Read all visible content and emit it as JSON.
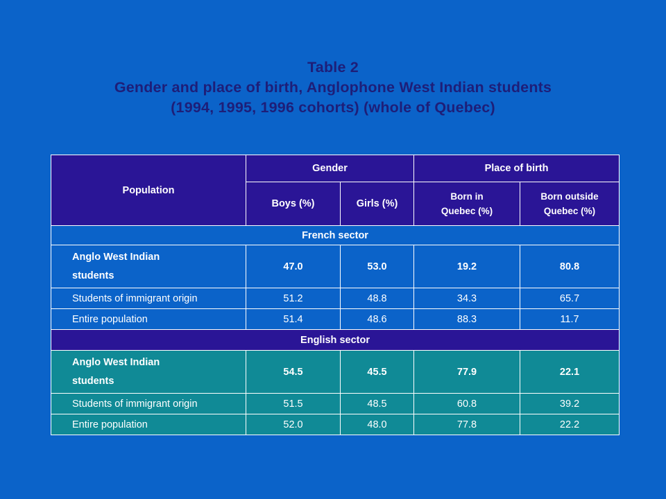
{
  "title": {
    "line1": "Table 2",
    "line2": "Gender and place of birth, Anglophone West Indian students",
    "line3": "(1994, 1995, 1996 cohorts) (whole of Quebec)"
  },
  "headers": {
    "population": "Population",
    "gender": "Gender",
    "place_of_birth": "Place of birth",
    "boys": "Boys (%)",
    "girls": "Girls (%)",
    "born_in_1": "Born in",
    "born_in_2": "Quebec (%)",
    "born_out_1": "Born outside",
    "born_out_2": "Quebec (%)"
  },
  "sectors": [
    {
      "name": "French sector",
      "rows": [
        {
          "pop1": "Anglo West Indian",
          "pop2": "students",
          "boys": "47.0",
          "girls": "53.0",
          "born_in": "19.2",
          "born_out": "80.8"
        },
        {
          "pop1": "Students of immigrant origin",
          "boys": "51.2",
          "girls": "48.8",
          "born_in": "34.3",
          "born_out": "65.7"
        },
        {
          "pop1": "Entire population",
          "boys": "51.4",
          "girls": "48.6",
          "born_in": "88.3",
          "born_out": "11.7"
        }
      ]
    },
    {
      "name": "English sector",
      "rows": [
        {
          "pop1": "Anglo West Indian",
          "pop2": "students",
          "boys": "54.5",
          "girls": "45.5",
          "born_in": "77.9",
          "born_out": "22.1"
        },
        {
          "pop1": "Students of immigrant origin",
          "boys": "51.5",
          "girls": "48.5",
          "born_in": "60.8",
          "born_out": "39.2"
        },
        {
          "pop1": "Entire population",
          "boys": "52.0",
          "girls": "48.0",
          "born_in": "77.8",
          "born_out": "22.2"
        }
      ]
    }
  ],
  "colors": {
    "background": "#0b63c9",
    "header": "#2a1596",
    "english_rows": "#108a96",
    "title_text": "#1e1e78"
  }
}
